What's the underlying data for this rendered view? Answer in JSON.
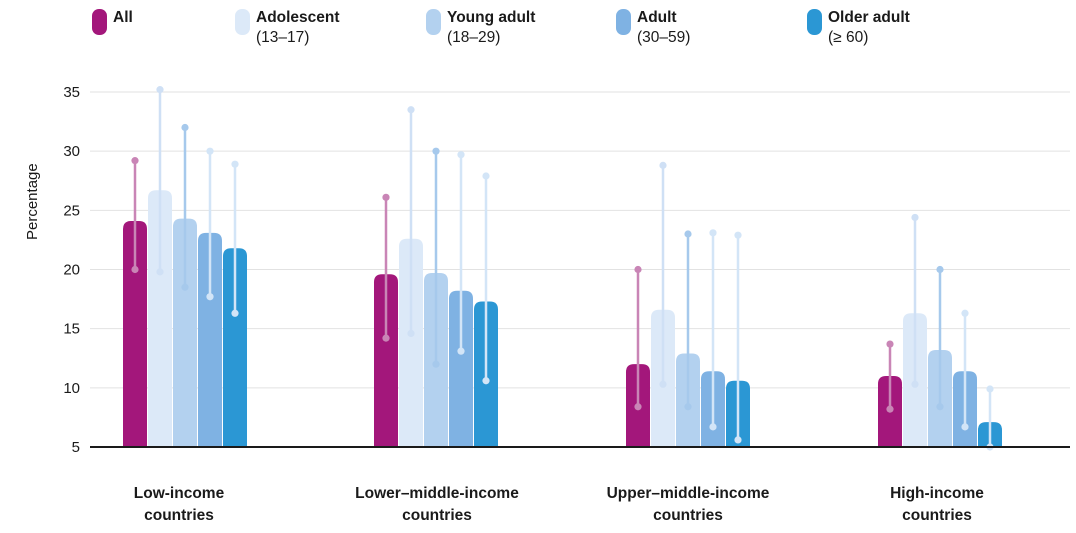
{
  "chart_data": {
    "type": "bar",
    "xlabel": "",
    "ylabel": "Percentage",
    "ylim": [
      5,
      35
    ],
    "yticks": [
      5,
      10,
      15,
      20,
      25,
      30,
      35
    ],
    "grid": true,
    "legend_position": "top",
    "categories": [
      {
        "line1": "Low-income",
        "line2": "countries"
      },
      {
        "line1": "Lower–middle-income",
        "line2": "countries"
      },
      {
        "line1": "Upper–middle-income",
        "line2": "countries"
      },
      {
        "line1": "High-income",
        "line2": "countries"
      }
    ],
    "series": [
      {
        "name": "All",
        "sub": "",
        "color": "#a3177b",
        "whisker_color": "#c985b6",
        "values": [
          24.1,
          19.6,
          12.0,
          11.0
        ],
        "lower": [
          20.0,
          14.2,
          8.4,
          8.2
        ],
        "upper": [
          29.2,
          26.1,
          20.0,
          13.7
        ]
      },
      {
        "name": "Adolescent",
        "sub": "(13–17)",
        "color": "#dce9f8",
        "whisker_color": "#cfe0f5",
        "values": [
          26.7,
          22.6,
          16.6,
          16.3
        ],
        "lower": [
          19.8,
          14.6,
          10.3,
          10.3
        ],
        "upper": [
          35.2,
          33.5,
          28.8,
          24.4
        ]
      },
      {
        "name": "Young adult",
        "sub": "(18–29)",
        "color": "#b3d1ef",
        "whisker_color": "#a6c9ec",
        "values": [
          24.3,
          19.7,
          12.9,
          13.2
        ],
        "lower": [
          18.5,
          12.0,
          8.4,
          8.4
        ],
        "upper": [
          32.0,
          30.0,
          23.0,
          20.0
        ]
      },
      {
        "name": "Adult",
        "sub": "(30–59)",
        "color": "#7fb2e3",
        "whisker_color": "#d3e5f7",
        "values": [
          23.1,
          18.2,
          11.4,
          11.4
        ],
        "lower": [
          17.7,
          13.1,
          6.7,
          6.7
        ],
        "upper": [
          30.0,
          29.7,
          23.1,
          16.3
        ]
      },
      {
        "name": "Older adult",
        "sub": "(≥ 60)",
        "color": "#2b97d4",
        "whisker_color": "#d3e5f7",
        "values": [
          21.8,
          17.3,
          10.6,
          7.1
        ],
        "lower": [
          16.3,
          10.6,
          5.6,
          5.0
        ],
        "upper": [
          28.9,
          27.9,
          22.9,
          9.9
        ]
      }
    ]
  }
}
